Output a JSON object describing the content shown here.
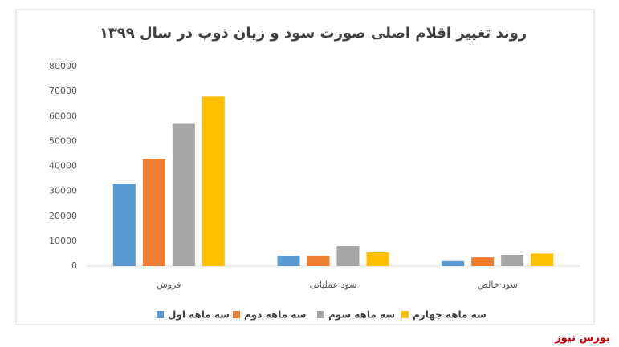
{
  "chart_data": {
    "type": "bar",
    "title": "روند تغییر اقلام اصلی صورت سود و زیان ذوب در سال ۱۳۹۹",
    "categories": [
      "فروش",
      "سود عملیاتی",
      "سود خالص"
    ],
    "series": [
      {
        "name": "سه ماهه اول",
        "color": "#5b9bd5",
        "values": [
          33000,
          4000,
          2000
        ]
      },
      {
        "name": "سه ماهه دوم",
        "color": "#ed7d31",
        "values": [
          43000,
          4000,
          3500
        ]
      },
      {
        "name": "سه ماهه سوم",
        "color": "#a5a5a5",
        "values": [
          57000,
          8000,
          4500
        ]
      },
      {
        "name": "سه ماهه چهارم",
        "color": "#ffc000",
        "values": [
          68000,
          5500,
          5000
        ]
      }
    ],
    "ylim": [
      0,
      80000
    ],
    "yticks": [
      0,
      10000,
      20000,
      30000,
      40000,
      50000,
      60000,
      70000,
      80000
    ],
    "grid": false,
    "legend": "bottom",
    "source": "بورس نیوز"
  }
}
